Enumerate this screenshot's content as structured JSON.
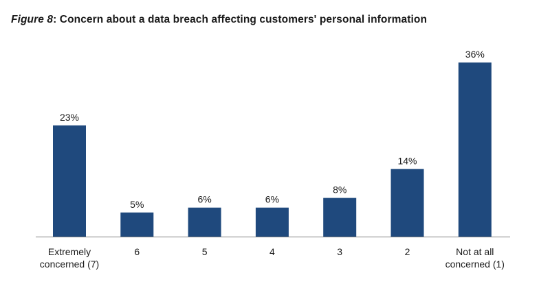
{
  "figure": {
    "label": "Figure 8",
    "separator": ":",
    "title": "Concern about a data breach affecting customers' personal information"
  },
  "chart_data": {
    "type": "bar",
    "categories": [
      [
        "Extremely",
        "concerned (7)"
      ],
      [
        "6"
      ],
      [
        "5"
      ],
      [
        "4"
      ],
      [
        "3"
      ],
      [
        "2"
      ],
      [
        "Not at all",
        "concerned (1)"
      ]
    ],
    "values": [
      23,
      5,
      6,
      6,
      8,
      14,
      36
    ],
    "data_labels": [
      "23%",
      "5%",
      "6%",
      "6%",
      "8%",
      "14%",
      "36%"
    ],
    "unit": "%",
    "title": "Concern about a data breach affecting customers' personal information",
    "xlabel": "",
    "ylabel": "",
    "ylim": [
      0,
      40
    ],
    "grid": false,
    "legend": "none",
    "colors": {
      "bar": "#1f497d",
      "axis": "#7f7f7f",
      "text": "#1a1a1a"
    }
  }
}
